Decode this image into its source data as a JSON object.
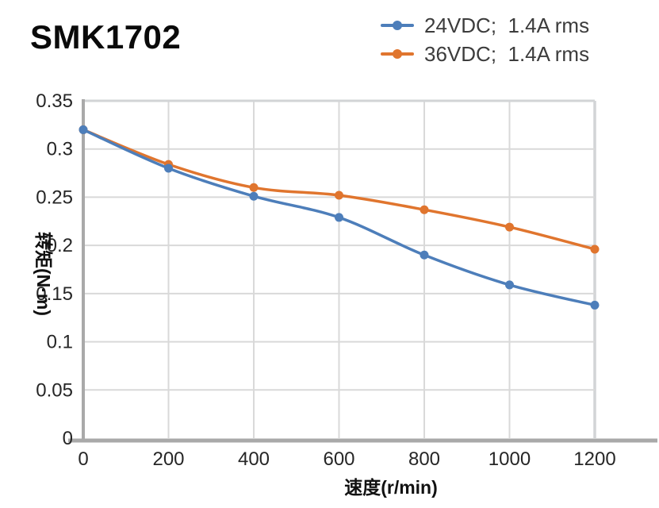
{
  "title": "SMK1702",
  "legend": {
    "items": [
      {
        "label": "24VDC;  1.4A rms",
        "color": "#4d7eba"
      },
      {
        "label": "36VDC;  1.4A rms",
        "color": "#e0752e"
      }
    ]
  },
  "chart_data": {
    "type": "line",
    "title": "SMK1702",
    "xlabel": "速度(r/min)",
    "ylabel": "转矩(N·m)",
    "x": [
      0,
      200,
      400,
      600,
      800,
      1000,
      1200
    ],
    "series": [
      {
        "name": "24VDC;  1.4A rms",
        "color": "#4d7eba",
        "values": [
          0.32,
          0.28,
          0.251,
          0.229,
          0.19,
          0.159,
          0.138
        ]
      },
      {
        "name": "36VDC;  1.4A rms",
        "color": "#e0752e",
        "values": [
          0.32,
          0.284,
          0.26,
          0.252,
          0.237,
          0.219,
          0.196
        ]
      }
    ],
    "xlim": [
      0,
      1200
    ],
    "ylim": [
      0,
      0.35
    ],
    "xticks": [
      0,
      200,
      400,
      600,
      800,
      1000,
      1200
    ],
    "xtick_labels": [
      "0",
      "200",
      "400",
      "600",
      "800",
      "1000",
      "1200"
    ],
    "yticks": [
      0,
      0.05,
      0.1,
      0.15,
      0.2,
      0.25,
      0.3,
      0.35
    ],
    "ytick_labels": [
      "0",
      "0.05",
      "0.1",
      "0.15",
      "0.2",
      "0.25",
      "0.3",
      "0.35"
    ],
    "grid": true,
    "grid_color": "#d9d9d9",
    "border_color": "#d2d4d6",
    "axis_color": "#a9a9a9",
    "legend_position": "top-right",
    "marker": "circle",
    "smooth": true
  }
}
